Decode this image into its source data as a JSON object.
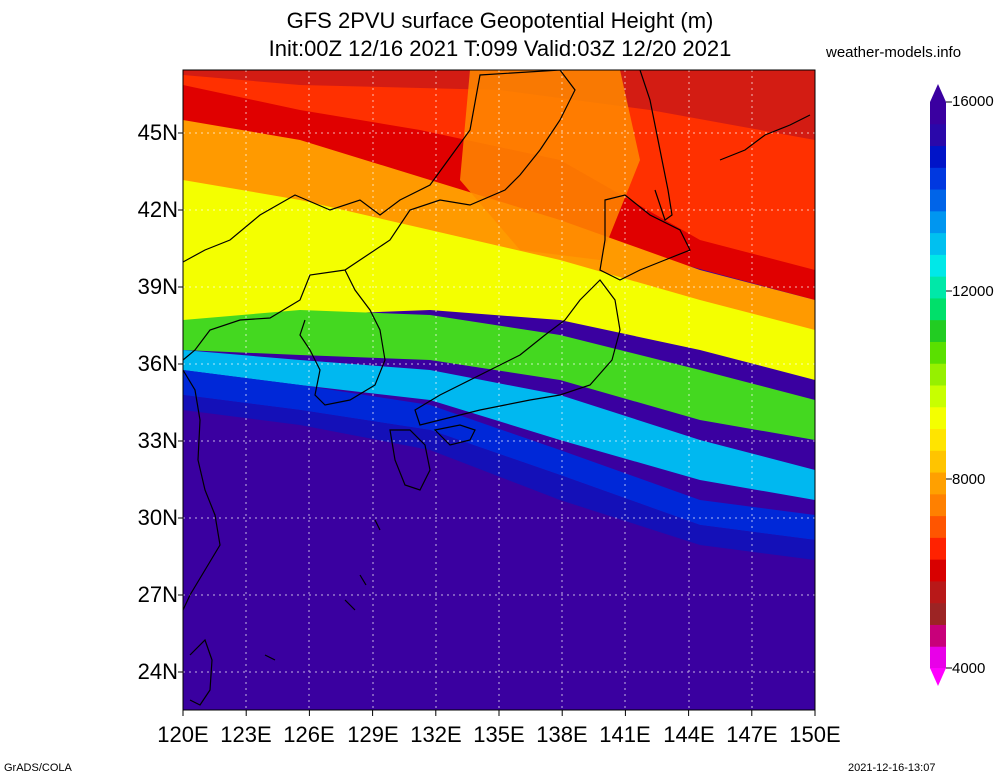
{
  "header": {
    "title_line1": "GFS 2PVU surface Geopotential Height (m)",
    "title_line2": "Init:00Z 12/16 2021 T:099 Valid:03Z 12/20 2021",
    "site": "weather-models.info"
  },
  "axes": {
    "lat_labels": [
      "45N",
      "42N",
      "39N",
      "36N",
      "33N",
      "30N",
      "27N",
      "24N"
    ],
    "lon_labels": [
      "120E",
      "123E",
      "126E",
      "129E",
      "132E",
      "135E",
      "138E",
      "141E",
      "144E",
      "147E",
      "150E"
    ]
  },
  "colorbar": {
    "ticks": [
      "16000",
      "12000",
      "8000",
      "4000"
    ],
    "colors": [
      "#e800e8",
      "#c8007a",
      "#9c2424",
      "#b81818",
      "#d80000",
      "#ff2200",
      "#ff5500",
      "#ff8000",
      "#ffa000",
      "#ffc400",
      "#ffe400",
      "#f4ff00",
      "#c8ff00",
      "#96f000",
      "#5ae000",
      "#22cc22",
      "#00e06a",
      "#00e8a8",
      "#00e8e8",
      "#00c0f0",
      "#0096f0",
      "#0064e8",
      "#0038e0",
      "#0014c8",
      "#2a08aa",
      "#3a00a0"
    ]
  },
  "footer": {
    "left": "GrADS/COLA",
    "right": "2021-12-16-13:07"
  }
}
